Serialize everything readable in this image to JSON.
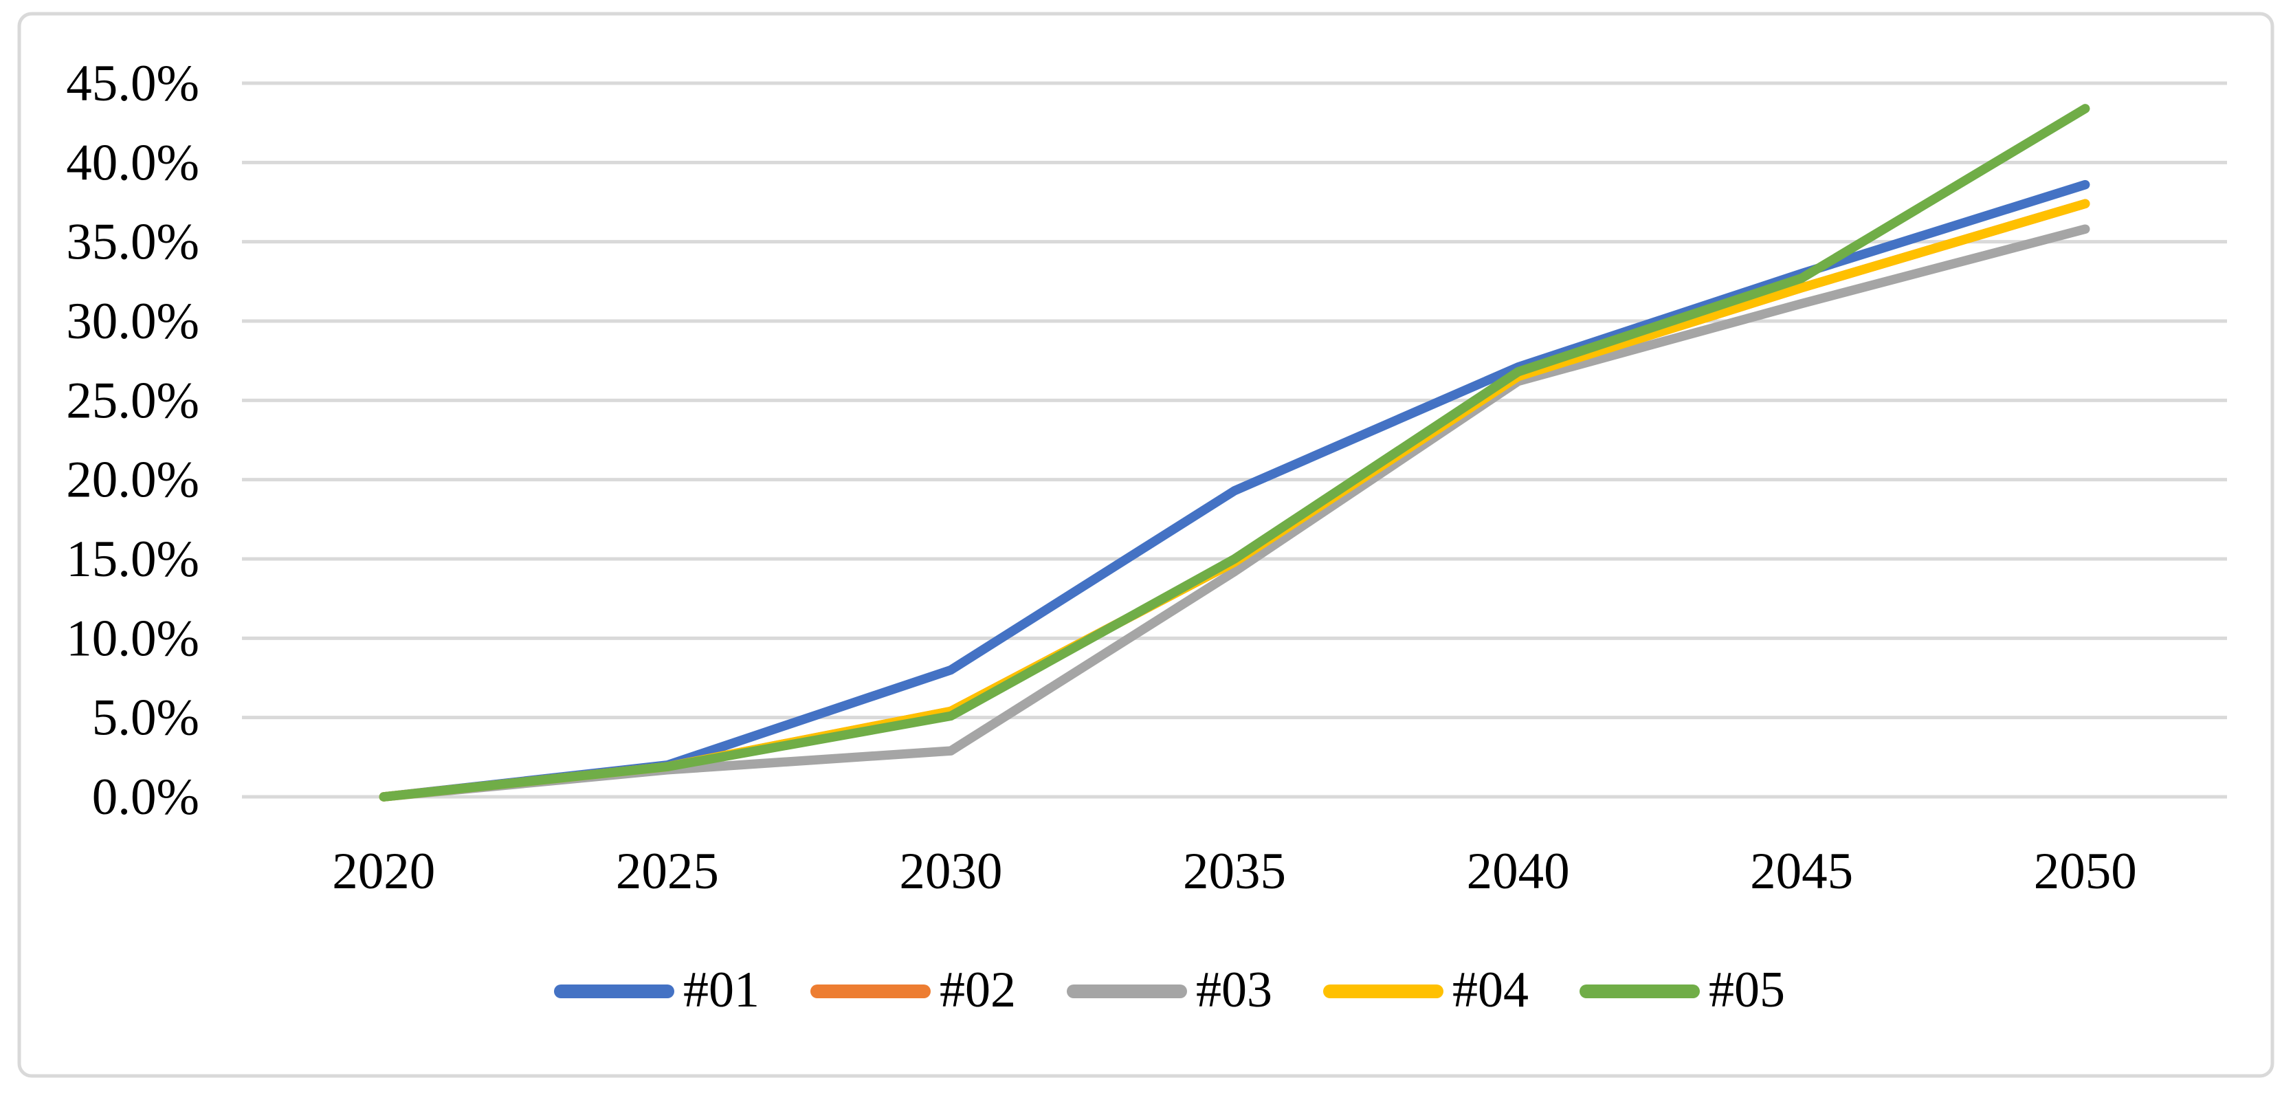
{
  "figure": {
    "background": "#FFFFFF",
    "border_color": "#D9D9D9"
  },
  "chart_data": {
    "type": "line",
    "title": "",
    "x_categories": [
      "2020",
      "2025",
      "2030",
      "2035",
      "2040",
      "2045",
      "2050"
    ],
    "y_axis": {
      "min": 0,
      "max": 45,
      "step": 5,
      "unit": "%",
      "tick_labels": [
        "0.0%",
        "5.0%",
        "10.0%",
        "15.0%",
        "20.0%",
        "25.0%",
        "30.0%",
        "35.0%",
        "40.0%",
        "45.0%"
      ]
    },
    "grid": {
      "horizontal": true,
      "vertical": false,
      "color": "#D9D9D9"
    },
    "series": [
      {
        "name": "#01",
        "color": "#4472C4",
        "values": [
          0.0,
          2.0,
          8.0,
          19.3,
          27.1,
          33.0,
          38.6
        ]
      },
      {
        "name": "#02",
        "color": "#ED7D31",
        "values": [
          0.0,
          1.9,
          5.4,
          14.8,
          26.5,
          32.1,
          37.4
        ]
      },
      {
        "name": "#03",
        "color": "#A5A5A5",
        "values": [
          0.0,
          1.7,
          2.9,
          14.2,
          26.2,
          31.1,
          35.8
        ]
      },
      {
        "name": "#04",
        "color": "#FFC000",
        "values": [
          0.0,
          1.9,
          5.4,
          14.8,
          26.5,
          32.1,
          37.4
        ]
      },
      {
        "name": "#05",
        "color": "#70AD47",
        "values": [
          0.0,
          1.9,
          5.1,
          15.0,
          26.8,
          32.7,
          43.4
        ]
      }
    ],
    "legend": {
      "position": "bottom-center",
      "labels": [
        "#01",
        "#02",
        "#03",
        "#04",
        "#05"
      ]
    }
  }
}
